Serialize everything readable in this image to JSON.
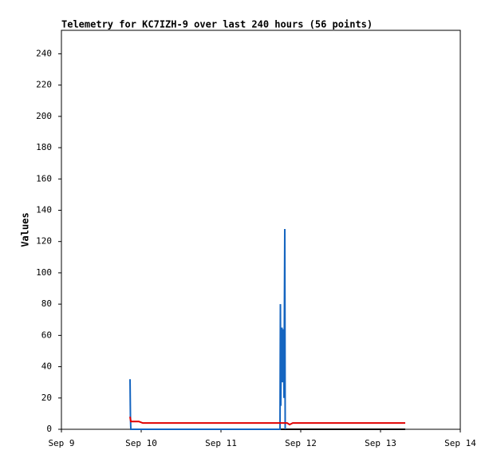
{
  "chart_data": {
    "type": "line",
    "title": "Telemetry for KC7IZH-9 over last 240 hours (56 points)",
    "y_label": "Values",
    "xlim": [
      9,
      14
    ],
    "xticks": [
      {
        "value": 9,
        "label": "Sep 9"
      },
      {
        "value": 10,
        "label": "Sep 10"
      },
      {
        "value": 11,
        "label": "Sep 11"
      },
      {
        "value": 12,
        "label": "Sep 12"
      },
      {
        "value": 13,
        "label": "Sep 13"
      },
      {
        "value": 14,
        "label": "Sep 14"
      }
    ],
    "ylim": [
      0,
      255
    ],
    "yticks": [
      0,
      20,
      40,
      60,
      80,
      100,
      120,
      140,
      160,
      180,
      200,
      220,
      240
    ],
    "grid": false,
    "series": [
      {
        "color": "#000000",
        "x": [
          9.86,
          13.31
        ],
        "values": [
          0,
          0
        ]
      },
      {
        "color": "#1565c0",
        "x": [
          9.86,
          9.865,
          9.87,
          11.74,
          11.745,
          11.75,
          11.755,
          11.76,
          11.765,
          11.77,
          11.775,
          11.78,
          11.785,
          11.79,
          11.8,
          11.805
        ],
        "values": [
          32,
          8,
          0,
          0,
          80,
          15,
          52,
          50,
          65,
          30,
          60,
          55,
          64,
          20,
          128,
          0
        ]
      },
      {
        "color": "#e00000",
        "x": [
          9.86,
          9.87,
          9.97,
          10.02,
          11.83,
          11.86,
          11.9,
          13.31
        ],
        "values": [
          8,
          5,
          5,
          4,
          4,
          3,
          4,
          4
        ]
      }
    ]
  }
}
